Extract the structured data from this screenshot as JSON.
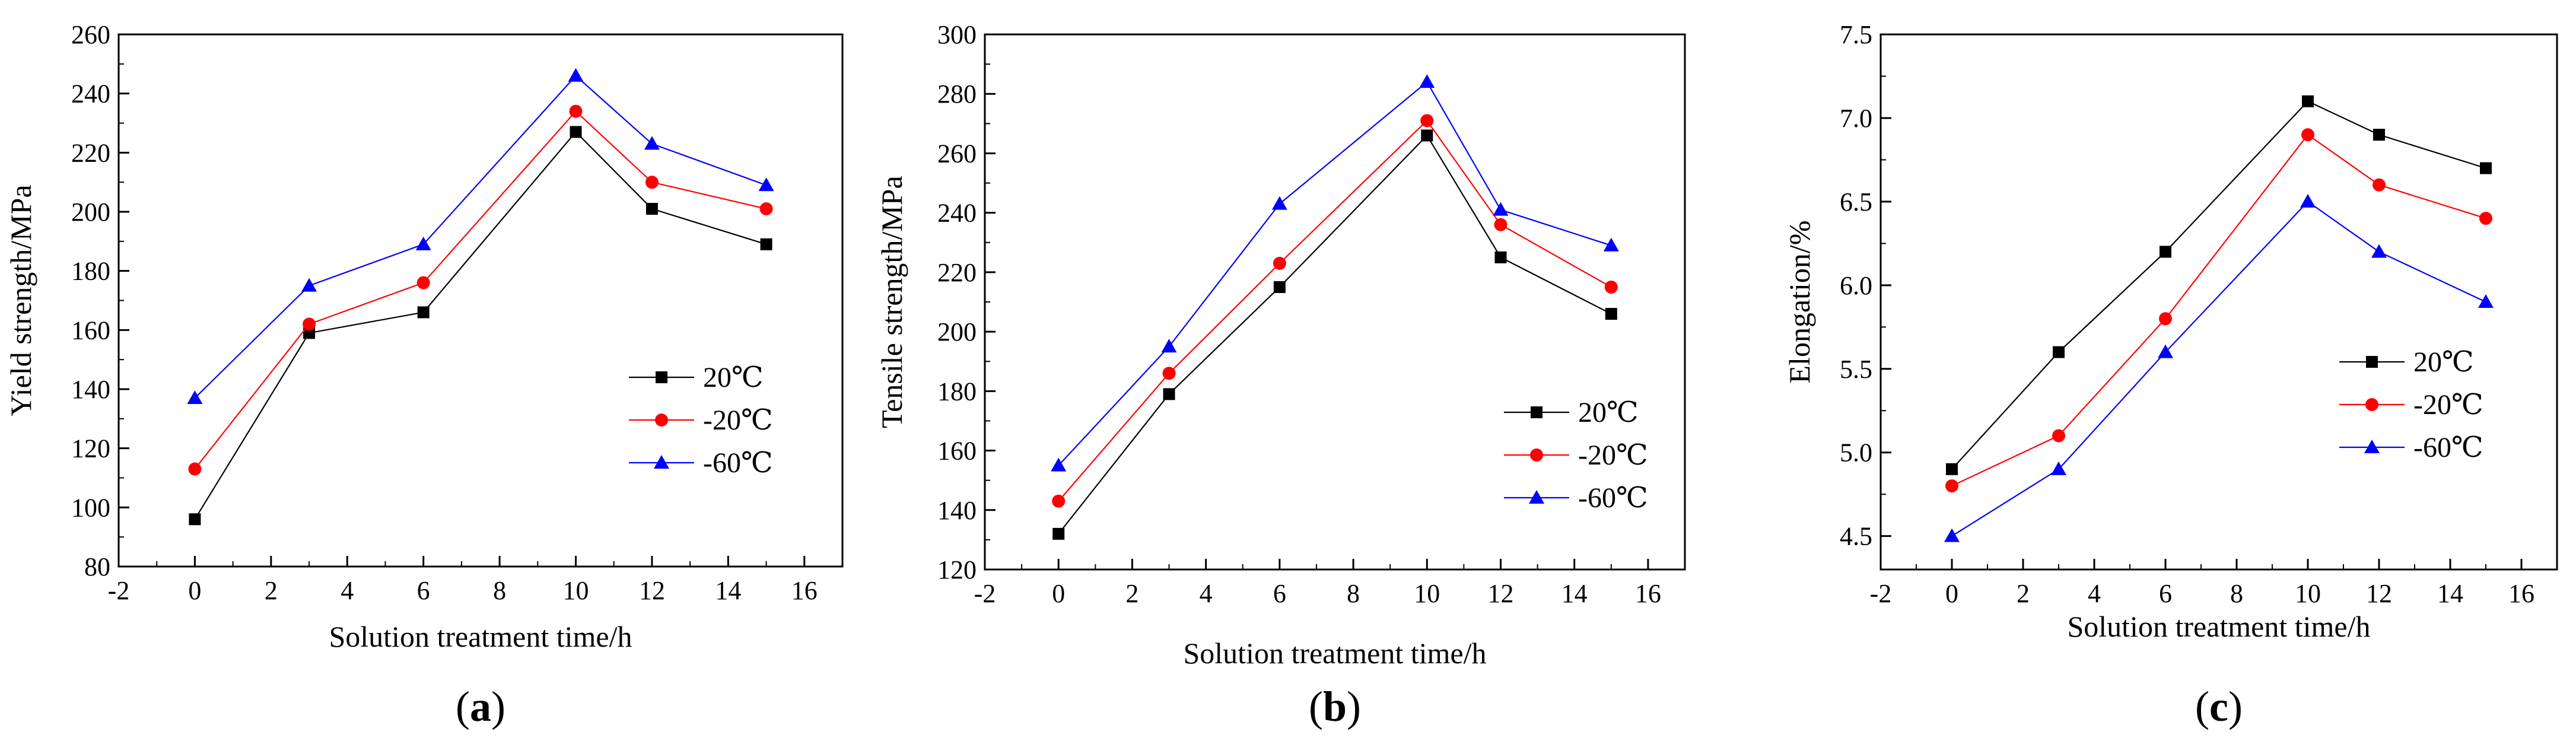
{
  "chart_data": [
    {
      "type": "line",
      "panel_label": "a",
      "xlabel": "Solution  treatment time/h",
      "ylabel": "Yield strength/MPa",
      "x": [
        0,
        3,
        6,
        10,
        12,
        15
      ],
      "xlim": [
        -2,
        17
      ],
      "xticks": [
        -2,
        0,
        2,
        4,
        6,
        8,
        10,
        12,
        14,
        16
      ],
      "ylim": [
        80,
        260
      ],
      "yticks": [
        80,
        100,
        120,
        140,
        160,
        180,
        200,
        220,
        240,
        260
      ],
      "tick_decimals": 0,
      "legend_position": "right-middle",
      "series": [
        {
          "name": "20℃",
          "color": "#000000",
          "marker": "square",
          "values": [
            96,
            159,
            166,
            227,
            201,
            189
          ]
        },
        {
          "name": "-20℃",
          "color": "#ff0000",
          "marker": "circle",
          "values": [
            113,
            162,
            176,
            234,
            210,
            201
          ]
        },
        {
          "name": "-60℃",
          "color": "#0000ff",
          "marker": "triangle",
          "values": [
            137,
            175,
            189,
            246,
            223,
            209
          ]
        }
      ]
    },
    {
      "type": "line",
      "panel_label": "b",
      "xlabel": "Solution treatment time/h",
      "ylabel": "Tensile strength/MPa",
      "x": [
        0,
        3,
        6,
        10,
        12,
        15
      ],
      "xlim": [
        -2,
        17
      ],
      "xticks": [
        -2,
        0,
        2,
        4,
        6,
        8,
        10,
        12,
        14,
        16
      ],
      "ylim": [
        120,
        300
      ],
      "yticks": [
        120,
        140,
        160,
        180,
        200,
        220,
        240,
        260,
        280,
        300
      ],
      "tick_decimals": 0,
      "legend_position": "right-middle",
      "series": [
        {
          "name": "20℃",
          "color": "#000000",
          "marker": "square",
          "values": [
            132,
            179,
            215,
            266,
            225,
            206
          ]
        },
        {
          "name": "-20℃",
          "color": "#ff0000",
          "marker": "circle",
          "values": [
            143,
            186,
            223,
            271,
            236,
            215
          ]
        },
        {
          "name": "-60℃",
          "color": "#0000ff",
          "marker": "triangle",
          "values": [
            155,
            195,
            243,
            284,
            241,
            229
          ]
        }
      ]
    },
    {
      "type": "line",
      "panel_label": "c",
      "xlabel": "Solution treatment time/h",
      "ylabel": "Elongation/%",
      "x": [
        0,
        3,
        6,
        10,
        12,
        15
      ],
      "xlim": [
        -2,
        17
      ],
      "xticks": [
        -2,
        0,
        2,
        4,
        6,
        8,
        10,
        12,
        14,
        16
      ],
      "ylim": [
        4.3,
        7.5
      ],
      "yticks": [
        4.5,
        5.0,
        5.5,
        6.0,
        6.5,
        7.0,
        7.5
      ],
      "tick_decimals": 1,
      "legend_position": "right-middle",
      "series": [
        {
          "name": "20℃",
          "color": "#000000",
          "marker": "square",
          "values": [
            4.9,
            5.6,
            6.2,
            7.1,
            6.9,
            6.7
          ]
        },
        {
          "name": "-20℃",
          "color": "#ff0000",
          "marker": "circle",
          "values": [
            4.8,
            5.1,
            5.8,
            6.9,
            6.6,
            6.4
          ]
        },
        {
          "name": "-60℃",
          "color": "#0000ff",
          "marker": "triangle",
          "values": [
            4.5,
            4.9,
            5.6,
            6.5,
            6.2,
            5.9
          ]
        }
      ]
    }
  ]
}
